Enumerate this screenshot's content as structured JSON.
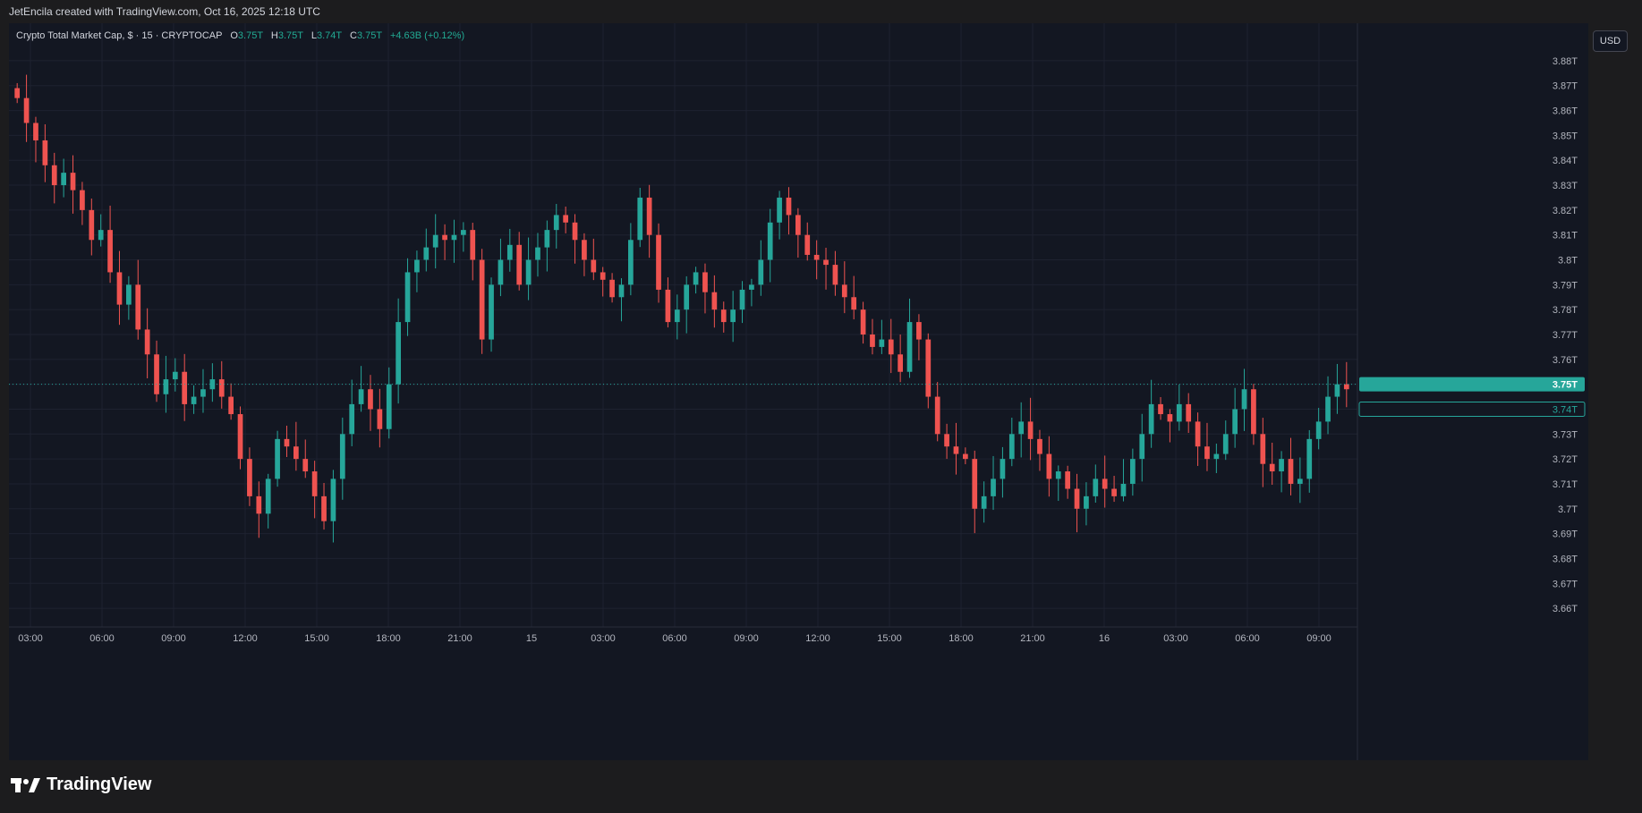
{
  "header": {
    "text": "JetEncila created with TradingView.com, Oct 16, 2025 12:18 UTC"
  },
  "legend": {
    "symbol": "Crypto Total Market Cap, $ · 15 · CRYPTOCAP",
    "o_label": "O",
    "o_value": "3.75T",
    "h_label": "H",
    "h_value": "3.75T",
    "l_label": "L",
    "l_value": "3.74T",
    "c_label": "C",
    "c_value": "3.75T",
    "change": "+4.63B (+0.12%)"
  },
  "currency_button": "USD",
  "footer": {
    "brand": "TradingView"
  },
  "colors": {
    "up": "#26a69a",
    "down": "#ef5350",
    "background": "#131722",
    "grid": "#1e2230",
    "text": "#b2b5be"
  },
  "chart_data": {
    "type": "candlestick",
    "title": "Crypto Total Market Cap, $ · 15 · CRYPTOCAP",
    "y_ticks": [
      "3.88T",
      "3.87T",
      "3.86T",
      "3.85T",
      "3.84T",
      "3.83T",
      "3.82T",
      "3.81T",
      "3.8T",
      "3.79T",
      "3.78T",
      "3.77T",
      "3.76T",
      "3.75T",
      "3.74T",
      "3.73T",
      "3.72T",
      "3.71T",
      "3.7T",
      "3.69T",
      "3.68T",
      "3.67T",
      "3.66T"
    ],
    "x_ticks": [
      "03:00",
      "06:00",
      "09:00",
      "12:00",
      "15:00",
      "18:00",
      "21:00",
      "15",
      "03:00",
      "06:00",
      "09:00",
      "12:00",
      "15:00",
      "18:00",
      "21:00",
      "16",
      "03:00",
      "06:00",
      "09:00"
    ],
    "ylim": [
      3.655,
      3.885
    ],
    "unit": "T",
    "grid": true,
    "last_price": {
      "value": 3.75,
      "label": "3.75T"
    },
    "prev_price": {
      "value": 3.74,
      "label": "3.74T"
    },
    "series_close_anchors": [
      3.865,
      3.855,
      3.848,
      3.838,
      3.83,
      3.835,
      3.828,
      3.82,
      3.808,
      3.812,
      3.795,
      3.782,
      3.79,
      3.772,
      3.762,
      3.746,
      3.752,
      3.755,
      3.742,
      3.745,
      3.748,
      3.752,
      3.745,
      3.738,
      3.72,
      3.705,
      3.698,
      3.712,
      3.728,
      3.725,
      3.72,
      3.715,
      3.705,
      3.695,
      3.712,
      3.73,
      3.742,
      3.748,
      3.74,
      3.732,
      3.75,
      3.775,
      3.795,
      3.8,
      3.805,
      3.81,
      3.808,
      3.81,
      3.812,
      3.8,
      3.768,
      3.79,
      3.8,
      3.806,
      3.79,
      3.8,
      3.805,
      3.812,
      3.818,
      3.815,
      3.808,
      3.8,
      3.795,
      3.792,
      3.785,
      3.79,
      3.808,
      3.825,
      3.81,
      3.788,
      3.775,
      3.78,
      3.79,
      3.795,
      3.787,
      3.78,
      3.775,
      3.78,
      3.788,
      3.79,
      3.8,
      3.815,
      3.825,
      3.818,
      3.81,
      3.802,
      3.8,
      3.798,
      3.79,
      3.785,
      3.78,
      3.77,
      3.765,
      3.768,
      3.762,
      3.755,
      3.775,
      3.768,
      3.745,
      3.73,
      3.725,
      3.722,
      3.72,
      3.7,
      3.705,
      3.712,
      3.72,
      3.73,
      3.735,
      3.728,
      3.722,
      3.712,
      3.715,
      3.708,
      3.7,
      3.705,
      3.712,
      3.708,
      3.705,
      3.71,
      3.72,
      3.73,
      3.742,
      3.738,
      3.735,
      3.742,
      3.735,
      3.725,
      3.72,
      3.722,
      3.73,
      3.74,
      3.748,
      3.73,
      3.718,
      3.715,
      3.72,
      3.71,
      3.712,
      3.728,
      3.735,
      3.745,
      3.75,
      3.748
    ]
  }
}
